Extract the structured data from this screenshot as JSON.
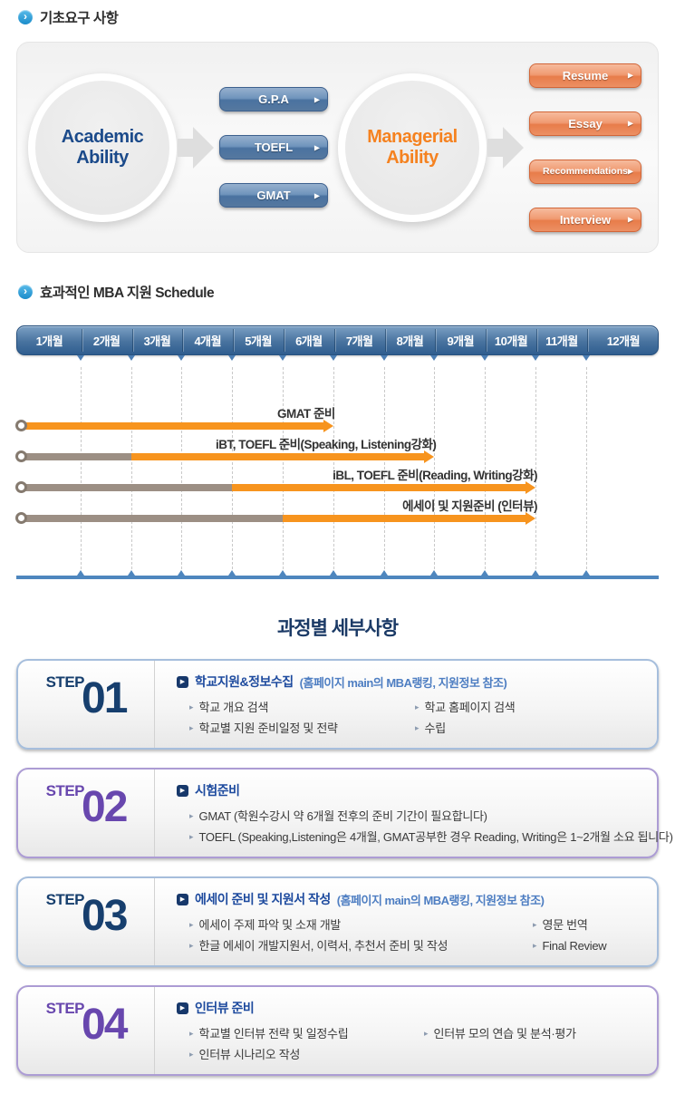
{
  "sections": {
    "basic": "기초요구 사항",
    "schedule": "효과적인 MBA 지원 Schedule",
    "steps_title": "과정별 세부사항"
  },
  "diagram": {
    "academic": {
      "label": "Academic Ability",
      "color": "#1b4a8a"
    },
    "managerial": {
      "label": "Managerial Ability",
      "color": "#f58220"
    },
    "academic_items": [
      "G.P.A",
      "TOEFL",
      "GMAT"
    ],
    "managerial_items": [
      "Resume",
      "Essay",
      "Recommendations",
      "Interview"
    ]
  },
  "chart_data": {
    "type": "gantt-timeline",
    "x_ticks": [
      "1개월",
      "2개월",
      "3개월",
      "4개월",
      "5개월",
      "6개월",
      "7개월",
      "8개월",
      "9개월",
      "10개월",
      "11개월",
      "12개월"
    ],
    "x_unit": "개월",
    "xlim": [
      0,
      12
    ],
    "grid": "dashed-vertical",
    "rows": [
      {
        "label": "GMAT 준비",
        "segments": [
          {
            "color": "orange",
            "from": 0,
            "to": 6
          }
        ]
      },
      {
        "label": "iBT, TOEFL 준비(Speaking, Listening강화)",
        "segments": [
          {
            "color": "gray",
            "from": 0,
            "to": 2
          },
          {
            "color": "orange",
            "from": 2,
            "to": 8
          }
        ]
      },
      {
        "label": "iBL, TOEFL 준비(Reading, Writing강화)",
        "segments": [
          {
            "color": "gray",
            "from": 0,
            "to": 4
          },
          {
            "color": "orange",
            "from": 4,
            "to": 10
          }
        ]
      },
      {
        "label": "에세이 및 지원준비 (인터뷰)",
        "segments": [
          {
            "color": "gray",
            "from": 0,
            "to": 5
          },
          {
            "color": "orange",
            "from": 5,
            "to": 10
          }
        ]
      }
    ],
    "colors": {
      "orange": "#F7941E",
      "gray": "#9C8F84",
      "axis": "#4E86BE",
      "header_bar": "#3D6A99",
      "marker_ring": "#857A6F"
    }
  },
  "step_theme": {
    "blue": {
      "num": "#173F6E",
      "border": "#A6BEDC"
    },
    "purple": {
      "num": "#6847AE",
      "border": "#AC9CD4"
    }
  },
  "steps": [
    {
      "word": "STEP",
      "num": "01",
      "theme": "blue",
      "title": "학교지원&정보수집",
      "note": "(홈페이지 main의 MBA랭킹, 지원정보 참조)",
      "col1": [
        "학교 개요 검색",
        "학교별 지원 준비일정 및 전략"
      ],
      "col2": [
        "학교 홈페이지 검색",
        "수립"
      ]
    },
    {
      "word": "STEP",
      "num": "02",
      "theme": "purple",
      "title": "시험준비",
      "note": "",
      "col1": [
        "GMAT (학원수강시 약 6개월 전후의 준비 기간이 필요합니다)",
        "TOEFL (Speaking,Listening은 4개월, GMAT공부한 경우 Reading, Writing은 1~2개월 소요 됩니다)"
      ],
      "col2": []
    },
    {
      "word": "STEP",
      "num": "03",
      "theme": "blue",
      "title": "에세이 준비 및 지원서 작성",
      "note": "(홈페이지 main의 MBA랭킹, 지원정보 참조)",
      "col1": [
        "에세이 주제 파악 및 소재 개발",
        "한글 에세이 개발지원서, 이력서, 추천서 준비 및 작성"
      ],
      "col2": [
        "영문 번역",
        "Final Review"
      ]
    },
    {
      "word": "STEP",
      "num": "04",
      "theme": "purple",
      "title": "인터뷰 준비",
      "note": "",
      "col1": [
        "학교별 인터뷰 전략 및 일정수립",
        "인터뷰 시나리오 작성"
      ],
      "col2": [
        "인터뷰 모의 연습 및 분석·평가"
      ]
    }
  ]
}
